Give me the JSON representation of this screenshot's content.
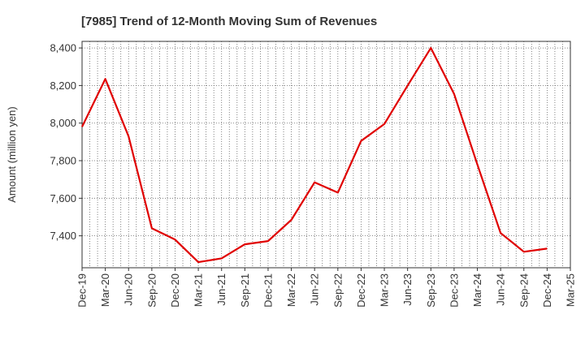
{
  "chart_data": {
    "type": "line",
    "title": "[7985]  Trend of 12-Month Moving Sum of Revenues",
    "xlabel": "",
    "ylabel": "Amount (million yen)",
    "x_ticks": [
      "Dec-19",
      "Mar-20",
      "Jun-20",
      "Sep-20",
      "Dec-20",
      "Mar-21",
      "Jun-21",
      "Sep-21",
      "Dec-21",
      "Mar-22",
      "Jun-22",
      "Sep-22",
      "Dec-22",
      "Mar-23",
      "Jun-23",
      "Sep-23",
      "Dec-23",
      "Mar-24",
      "Jun-24",
      "Sep-24",
      "Dec-24",
      "Mar-25"
    ],
    "y_ticks": [
      7400,
      7600,
      7800,
      8000,
      8200,
      8400
    ],
    "y_tick_labels": [
      "7,400",
      "7,600",
      "7,800",
      "8,000",
      "8,200",
      "8,400"
    ],
    "ylim": [
      7230,
      8435
    ],
    "grid": true,
    "series": [
      {
        "color": "#e00000",
        "x": [
          "Dec-19",
          "Mar-20",
          "Jun-20",
          "Sep-20",
          "Dec-20",
          "Mar-21",
          "Jun-21",
          "Sep-21",
          "Dec-21",
          "Mar-22",
          "Jun-22",
          "Sep-22",
          "Dec-22",
          "Mar-23",
          "Jun-23",
          "Sep-23",
          "Dec-23",
          "Mar-24",
          "Jun-24",
          "Sep-24",
          "Dec-24"
        ],
        "values": [
          7980,
          8235,
          7930,
          7440,
          7380,
          7260,
          7280,
          7355,
          7372,
          7485,
          7685,
          7630,
          7905,
          7995,
          8200,
          8400,
          8155,
          7780,
          7415,
          7315,
          7332
        ]
      }
    ]
  }
}
